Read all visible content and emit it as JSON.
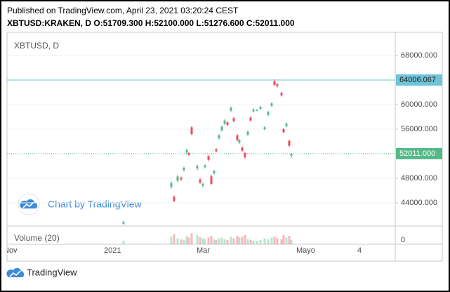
{
  "chart_data": {
    "type": "candlestick",
    "header_line1": "Published on TradingView.com, April 23, 2021 03:20:24 CEST",
    "header_line2": "XBTUSD:KRAKEN, D  O:51709.300 H:52100.000 L:51276.600 C:52011.000",
    "symbol_label": "XBTUSD, D",
    "watermark": "Chart by TradingView",
    "footer_brand": "TradingView",
    "up_color": "#53b987",
    "down_color": "#eb4d5c",
    "ylim": [
      40229,
      71771
    ],
    "yticks": [
      {
        "value": 44000,
        "label": "44000.000"
      },
      {
        "value": 48000,
        "label": "48000.000"
      },
      {
        "value": 56000,
        "label": "56000.000"
      },
      {
        "value": 60000,
        "label": "60000.000"
      },
      {
        "value": 68000,
        "label": "68000.000"
      }
    ],
    "grid": true,
    "time_labels": [
      "Nov",
      "2021",
      "Mar",
      "Mayo",
      "4"
    ],
    "price_lines": [
      {
        "value": 64006.067,
        "label": "64006.067",
        "color": "#6fc3d8",
        "style": "solid"
      },
      {
        "value": 52011,
        "label": "52011.000",
        "color": "#53b987",
        "style": "dotted"
      }
    ],
    "candles": {
      "open": [
        40600,
        46600,
        45000,
        47600,
        48100,
        49300,
        52200,
        52100,
        56300,
        49600,
        47800,
        46800,
        49800,
        51600,
        48300,
        48800,
        52700,
        54500,
        55800,
        56900,
        57100,
        59000,
        57800,
        55000,
        53800,
        53000,
        52100,
        55100,
        57900,
        58900,
        59000,
        59300,
        56000,
        58300,
        59800,
        63800,
        63300,
        61900,
        56000,
        56500,
        54100,
        51709.3
      ],
      "high": [
        41100,
        47500,
        45200,
        48600,
        48300,
        49900,
        52800,
        52300,
        56500,
        50200,
        48000,
        47300,
        50300,
        51800,
        48600,
        49400,
        52900,
        55200,
        56600,
        57600,
        57300,
        59700,
        58000,
        55200,
        54400,
        53200,
        52300,
        55800,
        58100,
        59400,
        59300,
        59800,
        56500,
        59000,
        60400,
        64100,
        63500,
        62100,
        56200,
        57100,
        54300,
        52100
      ],
      "low": [
        40400,
        46300,
        44100,
        47300,
        47600,
        49100,
        51900,
        51600,
        55000,
        49300,
        47100,
        46500,
        49600,
        50800,
        46900,
        48600,
        52200,
        54300,
        55600,
        56700,
        56500,
        58800,
        57100,
        54000,
        53600,
        52300,
        51200,
        54900,
        57200,
        58700,
        58900,
        59100,
        55800,
        58100,
        59600,
        63000,
        62800,
        61300,
        55300,
        56300,
        53100,
        51276.6
      ],
      "close": [
        40900,
        47200,
        44300,
        48300,
        47800,
        49700,
        52600,
        51800,
        55200,
        50000,
        47300,
        47100,
        50100,
        51000,
        47100,
        49200,
        52400,
        55000,
        56400,
        57400,
        56700,
        59500,
        57300,
        54200,
        54200,
        52500,
        51400,
        55600,
        57400,
        59200,
        59100,
        59600,
        56300,
        58800,
        60200,
        63200,
        63000,
        61500,
        55500,
        56900,
        53300,
        52011
      ]
    },
    "volume": {
      "label": "Volume (20)",
      "ylim": [
        0,
        100
      ],
      "yticks": [
        0
      ],
      "values": [
        20,
        45,
        60,
        35,
        30,
        25,
        50,
        40,
        65,
        55,
        45,
        35,
        30,
        40,
        50,
        30,
        25,
        35,
        40,
        30,
        25,
        45,
        35,
        50,
        40,
        45,
        55,
        30,
        25,
        20,
        20,
        25,
        35,
        30,
        40,
        45,
        35,
        30,
        55,
        40,
        50,
        25
      ]
    }
  }
}
